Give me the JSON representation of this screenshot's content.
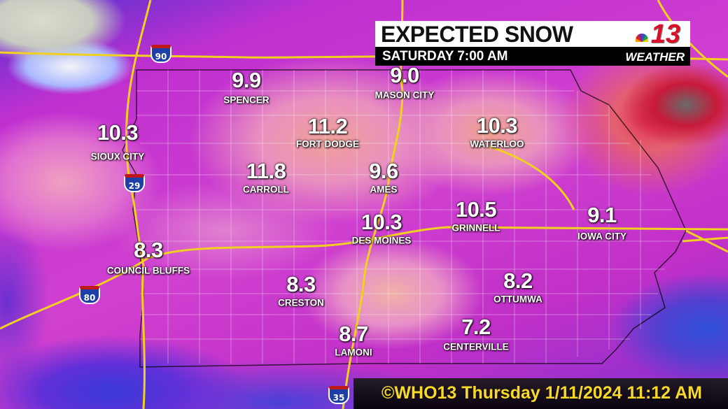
{
  "header": {
    "title": "EXPECTED SNOW",
    "subtitle": "SATURDAY  7:00 AM"
  },
  "logo": {
    "number": "13",
    "word": "WEATHER",
    "network": "nbc-peacock-icon"
  },
  "footer": {
    "timestamp": "©WHO13 Thursday  1/11/2024  11:12 AM"
  },
  "colors": {
    "heavy": "#e23050",
    "moderate": "#d040d0",
    "light": "#5030d0",
    "road": "#f0d020",
    "header_bg": "#ffffff",
    "subbar_bg": "#000000",
    "timestamp": "#ffe81a"
  },
  "highways": [
    "90",
    "29",
    "80",
    "35"
  ],
  "cities": [
    {
      "name": "SPENCER",
      "value": "9.9"
    },
    {
      "name": "MASON CITY",
      "value": "9.0"
    },
    {
      "name": "SIOUX CITY",
      "value": "10.3"
    },
    {
      "name": "FORT DODGE",
      "value": "11.2"
    },
    {
      "name": "WATERLOO",
      "value": "10.3"
    },
    {
      "name": "CARROLL",
      "value": "11.8"
    },
    {
      "name": "AMES",
      "value": "9.6"
    },
    {
      "name": "DES MOINES",
      "value": "10.3"
    },
    {
      "name": "GRINNELL",
      "value": "10.5"
    },
    {
      "name": "IOWA CITY",
      "value": "9.1"
    },
    {
      "name": "COUNCIL BLUFFS",
      "value": "8.3"
    },
    {
      "name": "CRESTON",
      "value": "8.3"
    },
    {
      "name": "OTTUMWA",
      "value": "8.2"
    },
    {
      "name": "CENTERVILLE",
      "value": "7.2"
    },
    {
      "name": "LAMONI",
      "value": "8.7"
    }
  ]
}
